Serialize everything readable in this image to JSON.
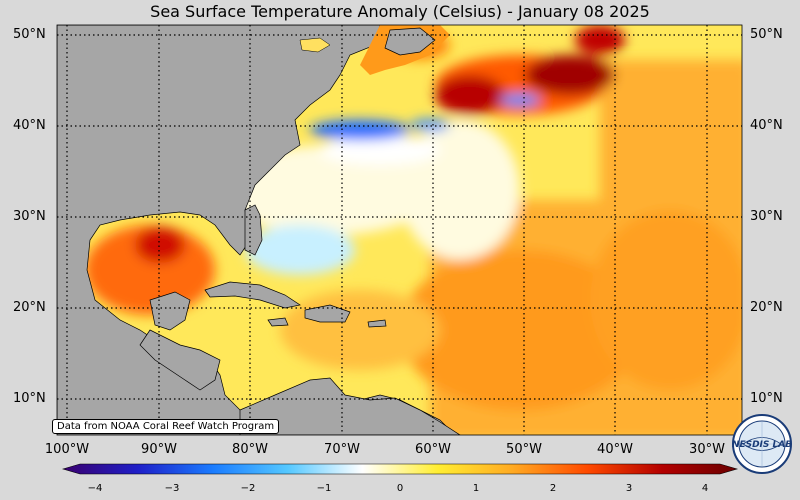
{
  "title": "Sea Surface Temperature Anomaly (Celsius) - January 08 2025",
  "latitude_labels": [
    "50°N",
    "40°N",
    "30°N",
    "20°N",
    "10°N"
  ],
  "longitude_labels": [
    "100°W",
    "90°W",
    "80°W",
    "70°W",
    "60°W",
    "50°W",
    "40°W",
    "30°W"
  ],
  "colorbar": {
    "ticks": [
      "−4",
      "−3",
      "−2",
      "−1",
      "0",
      "1",
      "2",
      "3",
      "4"
    ],
    "range": [
      -4,
      4
    ],
    "colors": [
      "#3a006e",
      "#1f1fc8",
      "#1b7cff",
      "#55c8ff",
      "#ffffff",
      "#ffee33",
      "#ffaa22",
      "#ff4a00",
      "#b30000",
      "#6a0000"
    ]
  },
  "credit": "Data from NOAA Coral Reef Watch Program",
  "logo": {
    "text": "NESDIS LAB",
    "icon": "globe-logo-icon"
  },
  "colors": {
    "land": "#a6a6a6",
    "ocean_neutral": "#fff6a8",
    "warm": "#ff9a1a",
    "hot": "#b00000",
    "cool": "#5fd0ff"
  }
}
